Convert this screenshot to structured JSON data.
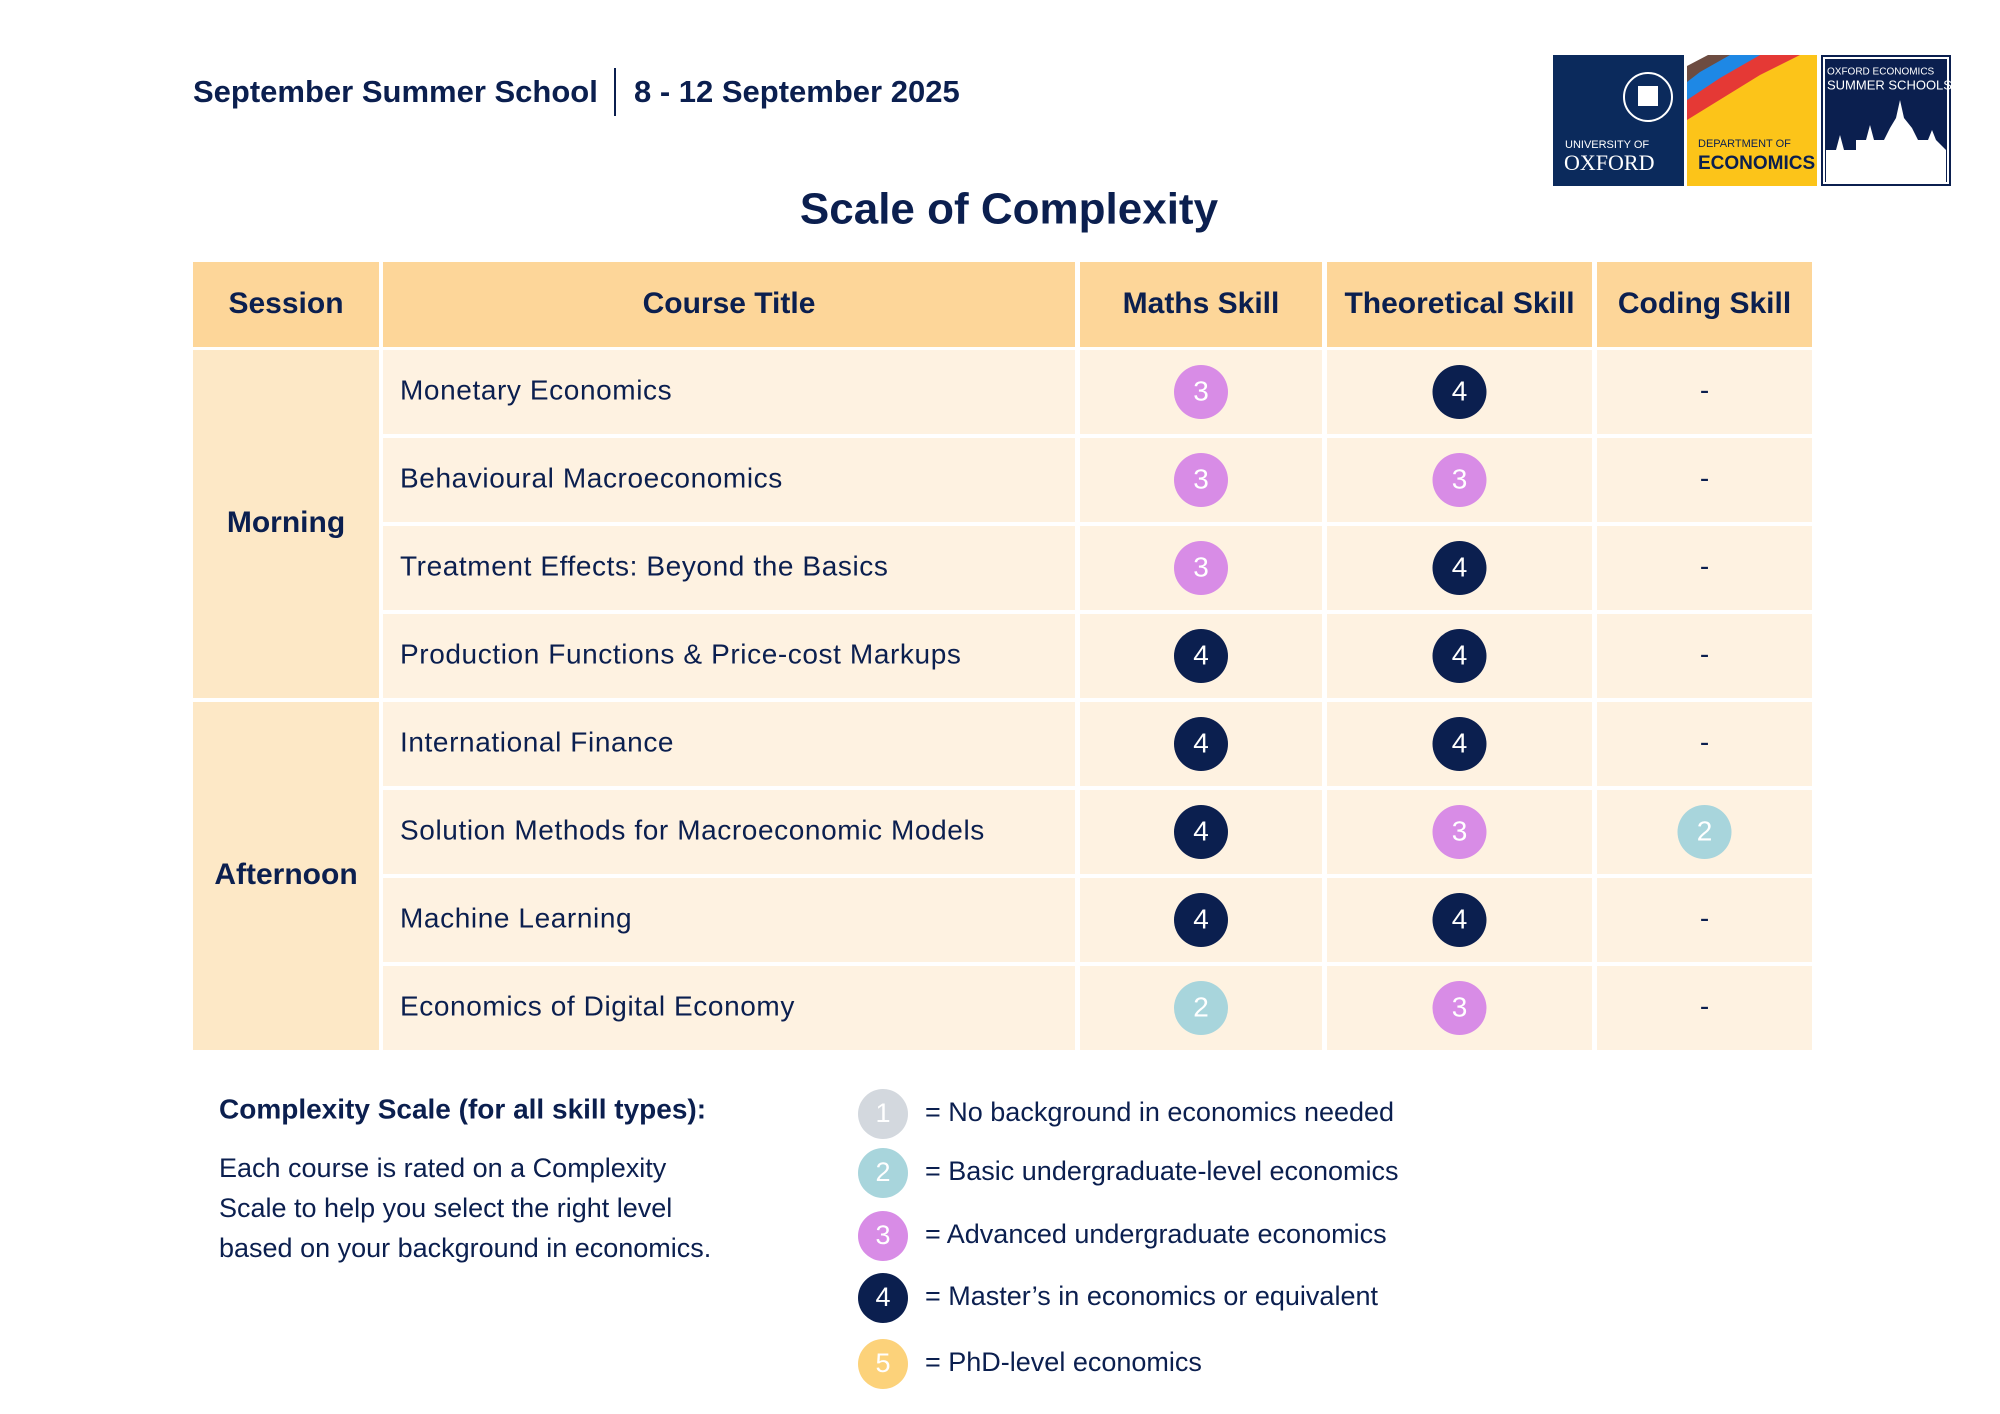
{
  "header": {
    "school": "September Summer School",
    "dates": "8 - 12 September 2025"
  },
  "logos": {
    "oxford_top": "UNIVERSITY OF",
    "oxford_name": "OXFORD",
    "dept_top": "DEPARTMENT OF",
    "dept_name": "ECONOMICS",
    "school_top": "OXFORD ECONOMICS",
    "school_name": "SUMMER SCHOOLS"
  },
  "title": "Scale of Complexity",
  "table": {
    "columns": [
      "Session",
      "Course Title",
      "Maths Skill",
      "Theoretical Skill",
      "Coding Skill"
    ],
    "sessions": [
      {
        "name": "Morning",
        "courses": [
          {
            "title": "Monetary Economics",
            "maths": 3,
            "theoretical": 4,
            "coding": "-"
          },
          {
            "title": "Behavioural Macroeconomics",
            "maths": 3,
            "theoretical": 3,
            "coding": "-"
          },
          {
            "title": "Treatment Effects: Beyond the Basics",
            "maths": 3,
            "theoretical": 4,
            "coding": "-"
          },
          {
            "title": "Production Functions & Price-cost Markups",
            "maths": 4,
            "theoretical": 4,
            "coding": "-"
          }
        ]
      },
      {
        "name": "Afternoon",
        "courses": [
          {
            "title": "International Finance",
            "maths": 4,
            "theoretical": 4,
            "coding": "-"
          },
          {
            "title": "Solution Methods for Macroeconomic Models",
            "maths": 4,
            "theoretical": 3,
            "coding": 2
          },
          {
            "title": "Machine Learning",
            "maths": 4,
            "theoretical": 4,
            "coding": "-"
          },
          {
            "title": "Economics of Digital Economy",
            "maths": 2,
            "theoretical": 3,
            "coding": "-"
          }
        ]
      }
    ]
  },
  "legend": {
    "heading": "Complexity Scale (for all skill types):",
    "description": [
      "Each course is rated on a Complexity",
      "Scale to help you select the right level",
      "based on your background in economics."
    ],
    "levels": [
      {
        "level": 1,
        "color": "#d3d8de",
        "text": "= No background in economics needed"
      },
      {
        "level": 2,
        "color": "#a8d5dc",
        "text": "= Basic undergraduate-level economics"
      },
      {
        "level": 3,
        "color": "#d88ce6",
        "text": "= Advanced undergraduate economics"
      },
      {
        "level": 4,
        "color": "#0b1f4f",
        "text": "= Master’s in economics or equivalent"
      },
      {
        "level": 5,
        "color": "#fcd27a",
        "text": "= PhD-level economics"
      }
    ]
  }
}
